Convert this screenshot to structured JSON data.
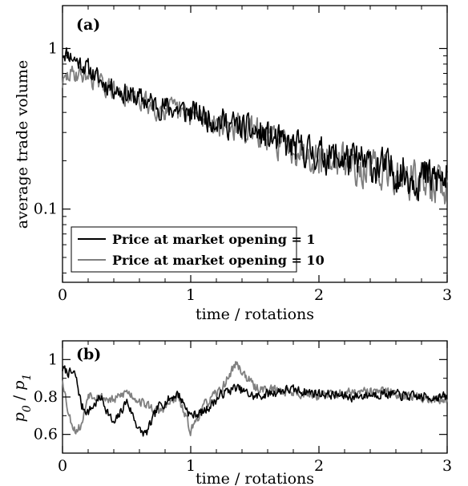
{
  "chart_data": [
    {
      "panel": "(a)",
      "type": "line",
      "xlabel": "time / rotations",
      "ylabel": "average trade volume",
      "xlim": [
        0,
        3
      ],
      "ylim": [
        0.035,
        1.85
      ],
      "yscale": "log",
      "x_ticks": [
        0,
        1,
        2,
        3
      ],
      "x_tick_labels": [
        "0",
        "1",
        "2",
        "3"
      ],
      "y_ticks": [
        0.1,
        1
      ],
      "y_tick_labels": [
        "0.1",
        "1"
      ],
      "grid": false,
      "legend_position": "bottom-left",
      "series": [
        {
          "name": "Price at market opening = 1",
          "color": "#000000",
          "x": [
            0,
            0.05,
            0.1,
            0.2,
            0.3,
            0.5,
            0.75,
            1.0,
            1.25,
            1.5,
            1.75,
            2.0,
            2.25,
            2.5,
            2.75,
            3.0
          ],
          "values": [
            0.95,
            0.92,
            0.85,
            0.75,
            0.62,
            0.52,
            0.44,
            0.4,
            0.35,
            0.3,
            0.25,
            0.22,
            0.2,
            0.18,
            0.16,
            0.15
          ]
        },
        {
          "name": "Price at market opening = 10",
          "color": "#808080",
          "x": [
            0,
            0.05,
            0.1,
            0.2,
            0.3,
            0.5,
            0.75,
            1.0,
            1.25,
            1.5,
            1.75,
            2.0,
            2.25,
            2.5,
            2.75,
            3.0
          ],
          "values": [
            0.6,
            0.68,
            0.7,
            0.68,
            0.6,
            0.5,
            0.43,
            0.38,
            0.34,
            0.3,
            0.25,
            0.21,
            0.19,
            0.17,
            0.15,
            0.14
          ]
        }
      ]
    },
    {
      "panel": "(b)",
      "type": "line",
      "xlabel": "time / rotations",
      "ylabel_main": "p",
      "ylabel_sub0": "0",
      "ylabel_sep": " / ",
      "ylabel_sub1": "1",
      "xlim": [
        0,
        3
      ],
      "ylim": [
        0.5,
        1.1
      ],
      "x_ticks": [
        0,
        1,
        2,
        3
      ],
      "x_tick_labels": [
        "0",
        "1",
        "2",
        "3"
      ],
      "y_ticks": [
        0.6,
        0.8,
        1.0
      ],
      "y_tick_labels": [
        "0.6",
        "0.8",
        "1"
      ],
      "grid": false,
      "series": [
        {
          "color": "#000000",
          "x": [
            0,
            0.05,
            0.1,
            0.15,
            0.2,
            0.3,
            0.4,
            0.5,
            0.6,
            0.65,
            0.75,
            0.9,
            1.0,
            1.1,
            1.25,
            1.35,
            1.5,
            1.75,
            2.0,
            2.25,
            2.5,
            2.75,
            3.0
          ],
          "values": [
            0.95,
            0.93,
            0.92,
            0.75,
            0.72,
            0.8,
            0.65,
            0.78,
            0.62,
            0.6,
            0.75,
            0.82,
            0.7,
            0.72,
            0.82,
            0.85,
            0.8,
            0.84,
            0.82,
            0.8,
            0.82,
            0.8,
            0.8
          ]
        },
        {
          "color": "#808080",
          "x": [
            0,
            0.05,
            0.1,
            0.15,
            0.2,
            0.3,
            0.4,
            0.5,
            0.6,
            0.75,
            0.9,
            1.0,
            1.1,
            1.25,
            1.35,
            1.5,
            1.75,
            2.0,
            2.25,
            2.5,
            2.75,
            3.0
          ],
          "values": [
            0.9,
            0.7,
            0.62,
            0.65,
            0.82,
            0.8,
            0.78,
            0.83,
            0.78,
            0.72,
            0.8,
            0.62,
            0.75,
            0.85,
            0.98,
            0.85,
            0.83,
            0.81,
            0.82,
            0.83,
            0.8,
            0.78
          ]
        }
      ]
    }
  ]
}
